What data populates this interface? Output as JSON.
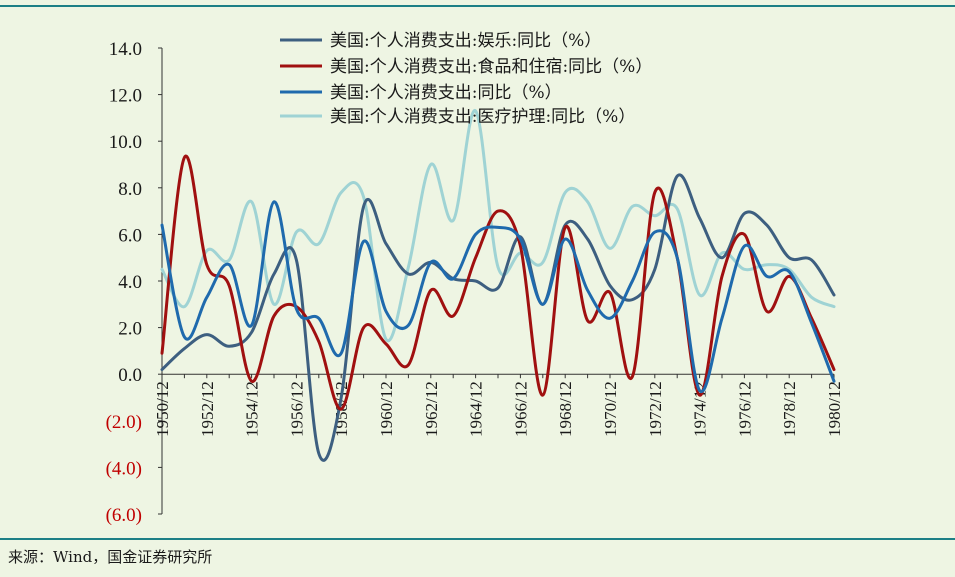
{
  "chart_data": {
    "type": "line",
    "title": "",
    "xlabel": "",
    "ylabel": "",
    "ylim": [
      -6,
      14
    ],
    "yticks": [
      14,
      12,
      10,
      8,
      6,
      4,
      2,
      0,
      -2,
      -4,
      -6
    ],
    "ytick_labels": [
      "14.0",
      "12.0",
      "10.0",
      "8.0",
      "6.0",
      "4.0",
      "2.0",
      "0.0",
      "(2.0)",
      "(4.0)",
      "(6.0)"
    ],
    "negative_tick_color": "#c00000",
    "x": [
      1950,
      1951,
      1952,
      1953,
      1954,
      1955,
      1956,
      1957,
      1958,
      1959,
      1960,
      1961,
      1962,
      1963,
      1964,
      1965,
      1966,
      1967,
      1968,
      1969,
      1970,
      1971,
      1972,
      1973,
      1974,
      1975,
      1976,
      1977,
      1978,
      1979,
      1980
    ],
    "xtick_labels": [
      "1950/12",
      "1952/12",
      "1954/12",
      "1956/12",
      "1958/12",
      "1960/12",
      "1962/12",
      "1964/12",
      "1966/12",
      "1968/12",
      "1970/12",
      "1972/12",
      "1974/12",
      "1976/12",
      "1978/12",
      "1980/12"
    ],
    "legend_position": "top-center",
    "series": [
      {
        "name": "美国:个人消费支出:娱乐:同比(%)",
        "color": "#3d5f80",
        "values": [
          0.2,
          1.1,
          1.7,
          1.2,
          1.8,
          4.3,
          4.9,
          -3.4,
          -1.0,
          7.2,
          5.6,
          4.3,
          4.8,
          4.1,
          4.0,
          3.7,
          5.9,
          3.0,
          6.4,
          5.8,
          3.8,
          3.2,
          4.5,
          8.5,
          6.7,
          5.0,
          6.9,
          6.4,
          5.0,
          4.9,
          3.4
        ]
      },
      {
        "name": "美国:个人消费支出:食品和住宿:同比(%)",
        "color": "#a01010",
        "values": [
          0.9,
          9.3,
          4.7,
          3.8,
          -0.3,
          2.5,
          2.9,
          1.4,
          -1.5,
          2.0,
          1.3,
          0.4,
          3.6,
          2.5,
          5.0,
          7.0,
          5.5,
          -0.9,
          6.3,
          2.3,
          3.5,
          -0.1,
          7.8,
          5.0,
          -0.9,
          4.2,
          6.0,
          2.7,
          4.2,
          2.4,
          0.2
        ]
      },
      {
        "name": "美国:个人消费支出:同比(%)",
        "color": "#1f6aad",
        "values": [
          6.4,
          1.6,
          3.3,
          4.7,
          2.1,
          7.4,
          2.8,
          2.4,
          0.9,
          5.7,
          2.7,
          2.1,
          4.8,
          4.1,
          6.0,
          6.3,
          5.8,
          3.0,
          5.8,
          3.6,
          2.4,
          4.0,
          6.1,
          5.0,
          -0.7,
          2.4,
          5.5,
          4.2,
          4.4,
          2.2,
          -0.3
        ]
      },
      {
        "name": "美国:个人消费支出:医疗护理:同比(%)",
        "color": "#9fd3d4",
        "values": [
          4.5,
          2.9,
          5.3,
          4.9,
          7.4,
          3.0,
          6.1,
          5.6,
          7.8,
          7.6,
          1.5,
          4.6,
          9.0,
          6.6,
          11.3,
          4.6,
          5.2,
          4.8,
          7.8,
          7.4,
          5.4,
          7.2,
          6.8,
          7.1,
          3.4,
          5.2,
          4.5,
          4.7,
          4.5,
          3.3,
          2.9
        ]
      }
    ]
  },
  "legend": {
    "entries": [
      "美国:个人消费支出:娱乐:同比（%）",
      "美国:个人消费支出:食品和住宿:同比（%）",
      "美国:个人消费支出:同比（%）",
      "美国:个人消费支出:医疗护理:同比（%）"
    ]
  },
  "source": "来源：Wind，国金证券研究所",
  "frame_color": "#1c7f86"
}
